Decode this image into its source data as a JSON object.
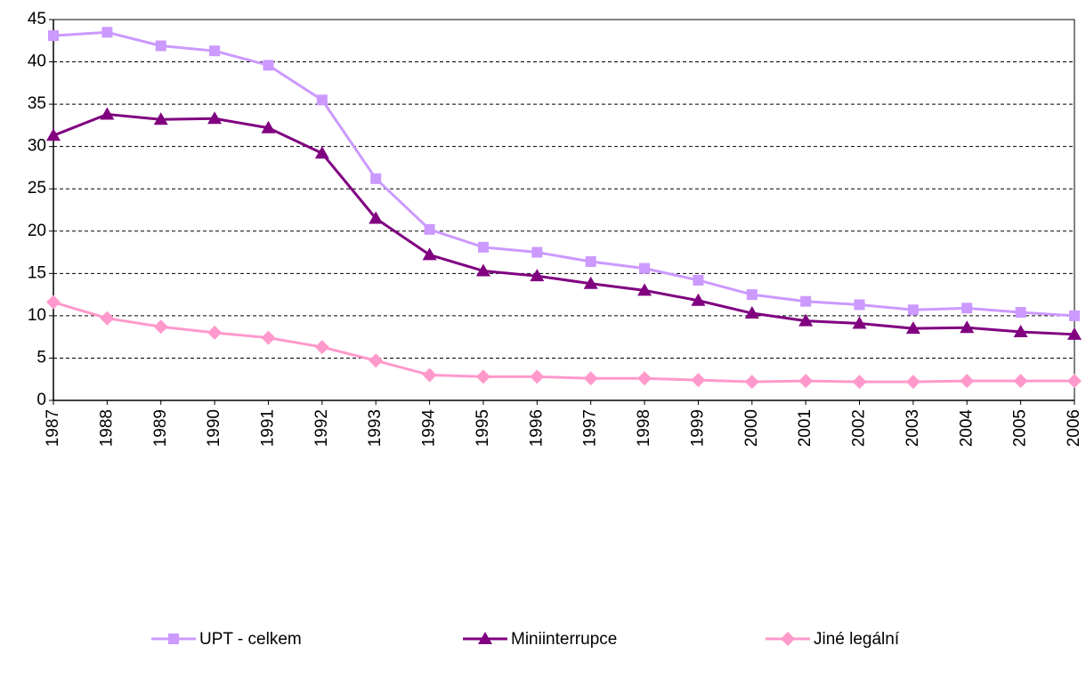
{
  "chart_data": {
    "type": "line",
    "categories": [
      "1987",
      "1988",
      "1989",
      "1990",
      "1991",
      "1992",
      "1993",
      "1994",
      "1995",
      "1996",
      "1997",
      "1998",
      "1999",
      "2000",
      "2001",
      "2002",
      "2003",
      "2004",
      "2005",
      "2006"
    ],
    "series": [
      {
        "name": "UPT - celkem",
        "color": "#cc99ff",
        "marker": "square",
        "values": [
          43.1,
          43.5,
          41.9,
          41.3,
          39.6,
          35.5,
          26.2,
          20.2,
          18.1,
          17.5,
          16.4,
          15.6,
          14.2,
          12.5,
          11.7,
          11.3,
          10.7,
          10.9,
          10.4,
          10.0
        ]
      },
      {
        "name": "Miniinterrupce",
        "color": "#800080",
        "marker": "triangle",
        "values": [
          31.3,
          33.8,
          33.2,
          33.3,
          32.2,
          29.2,
          21.5,
          17.2,
          15.3,
          14.7,
          13.8,
          13.0,
          11.8,
          10.3,
          9.4,
          9.1,
          8.5,
          8.6,
          8.1,
          7.8
        ]
      },
      {
        "name": "Jiné legální",
        "color": "#ff99cc",
        "marker": "diamond",
        "values": [
          11.6,
          9.7,
          8.7,
          8.0,
          7.4,
          6.3,
          4.7,
          3.0,
          2.8,
          2.8,
          2.6,
          2.6,
          2.4,
          2.2,
          2.3,
          2.2,
          2.2,
          2.3,
          2.3,
          2.3
        ]
      }
    ],
    "ylim": [
      0,
      45
    ],
    "yticks": [
      0,
      5,
      10,
      15,
      20,
      25,
      30,
      35,
      40,
      45
    ],
    "grid": true,
    "legend": "bottom"
  }
}
